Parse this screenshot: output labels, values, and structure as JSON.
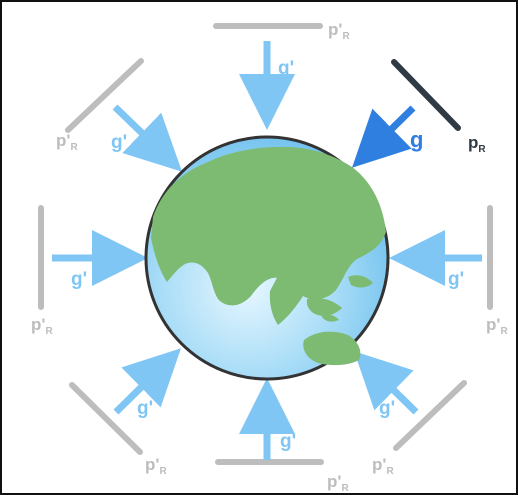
{
  "diagram": {
    "labels": {
      "g_prime": "g'",
      "g": "g",
      "p_prime": "p'",
      "p": "p",
      "subscript": "R"
    },
    "colors": {
      "background": "#ffffff",
      "frame": "#111111",
      "prime_arrow": "#7fc6f4",
      "prime_text": "#7fc6f4",
      "main_arrow": "#2f7fe0",
      "main_text": "#2f7fe0",
      "prime_plate": "#bdbdbd",
      "main_plate": "#2f3a44",
      "prime_plate_text": "#bdbdbd",
      "main_plate_text": "#2f3a44",
      "ocean": "#8ccdee",
      "land": "#7dbb72",
      "globe_outline": "#333333"
    }
  }
}
